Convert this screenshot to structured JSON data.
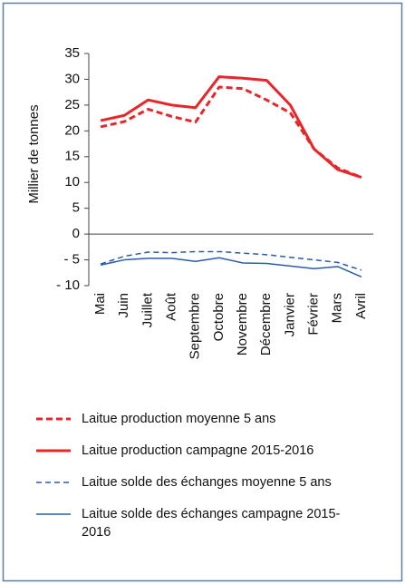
{
  "chart_data": {
    "type": "line",
    "y_label": "Millier de tonnes",
    "categories": [
      "Mai",
      "Juin",
      "Juillet",
      "Août",
      "Septembre",
      "Octobre",
      "Novembre",
      "Décembre",
      "Janvier",
      "Février",
      "Mars",
      "Avril"
    ],
    "series": [
      {
        "name": "Laitue production moyenne 5 ans",
        "color": "#e8262a",
        "line_style": "dashed",
        "line_width": 3,
        "values": [
          20.8,
          21.8,
          24.2,
          22.8,
          21.7,
          28.5,
          28.2,
          26,
          23.5,
          16.5,
          12.8,
          11
        ]
      },
      {
        "name": "Laitue production campagne 2015-2016",
        "color": "#e8262a",
        "line_style": "solid",
        "line_width": 3,
        "values": [
          22,
          23,
          26,
          25,
          24.5,
          30.5,
          30.2,
          29.8,
          25,
          16.5,
          12.5,
          11
        ]
      },
      {
        "name": "Laitue solde des échanges moyenne 5 ans",
        "color": "#2a5ca8",
        "line_style": "dashed",
        "line_width": 1.5,
        "values": [
          -5.8,
          -4.3,
          -3.5,
          -3.6,
          -3.4,
          -3.4,
          -3.7,
          -4,
          -4.5,
          -5,
          -5.5,
          -7
        ]
      },
      {
        "name": "Laitue solde des échanges campagne 2015-2016",
        "color": "#2a5ca8",
        "line_style": "solid",
        "line_width": 1.5,
        "values": [
          -6,
          -5,
          -4.7,
          -4.7,
          -5.3,
          -4.6,
          -5.6,
          -5.7,
          -6.2,
          -6.7,
          -6.3,
          -8.3
        ]
      }
    ],
    "ylim": [
      -10,
      35
    ],
    "yticks": [
      {
        "value": -10,
        "label": "- 10"
      },
      {
        "value": -5,
        "label": "- 5"
      },
      0,
      5,
      10,
      15,
      20,
      25,
      30,
      35
    ],
    "grid": false,
    "legend_position": "bottom"
  }
}
